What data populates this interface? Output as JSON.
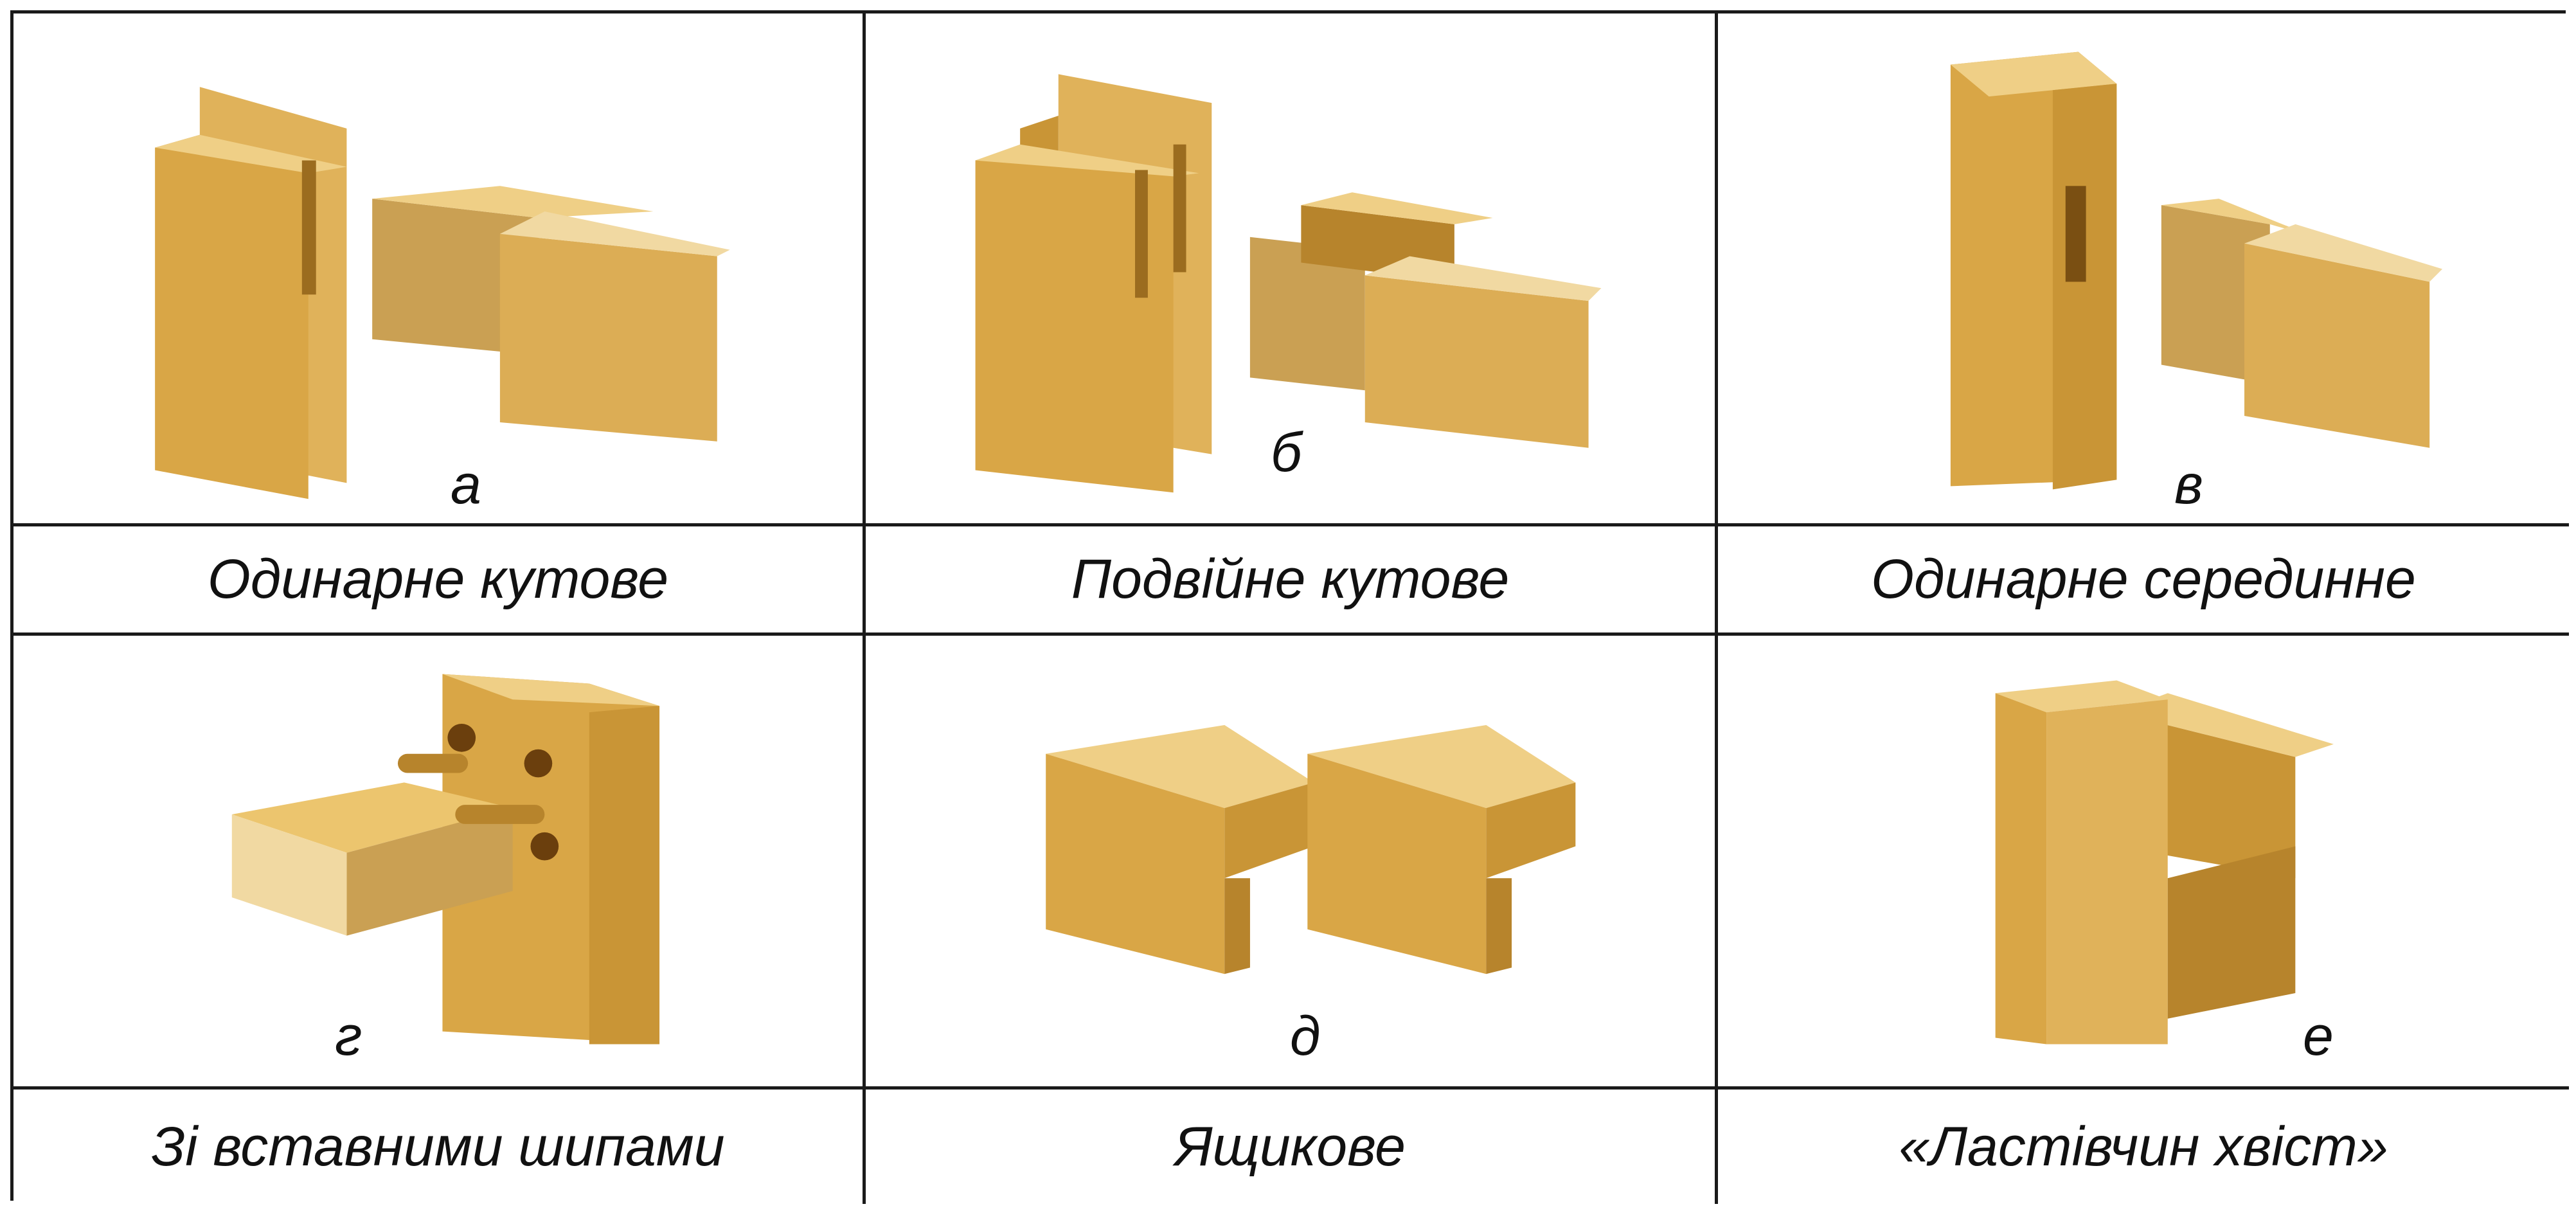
{
  "panels": [
    {
      "letter": "а",
      "caption": "Одинарне кутове"
    },
    {
      "letter": "б",
      "caption": "Подвійне кутове"
    },
    {
      "letter": "в",
      "caption": "Одинарне серединне"
    },
    {
      "letter": "г",
      "caption": "Зі вставними шипами"
    },
    {
      "letter": "д",
      "caption": "Ящикове"
    },
    {
      "letter": "е",
      "caption": "«Ластівчин хвіст»"
    }
  ],
  "colors": {
    "wood_light": "#ecc56e",
    "wood_mid": "#d9a646",
    "wood_dark": "#b7842c",
    "end_grain": "#f1d9a2",
    "border": "#1a1a1a"
  }
}
